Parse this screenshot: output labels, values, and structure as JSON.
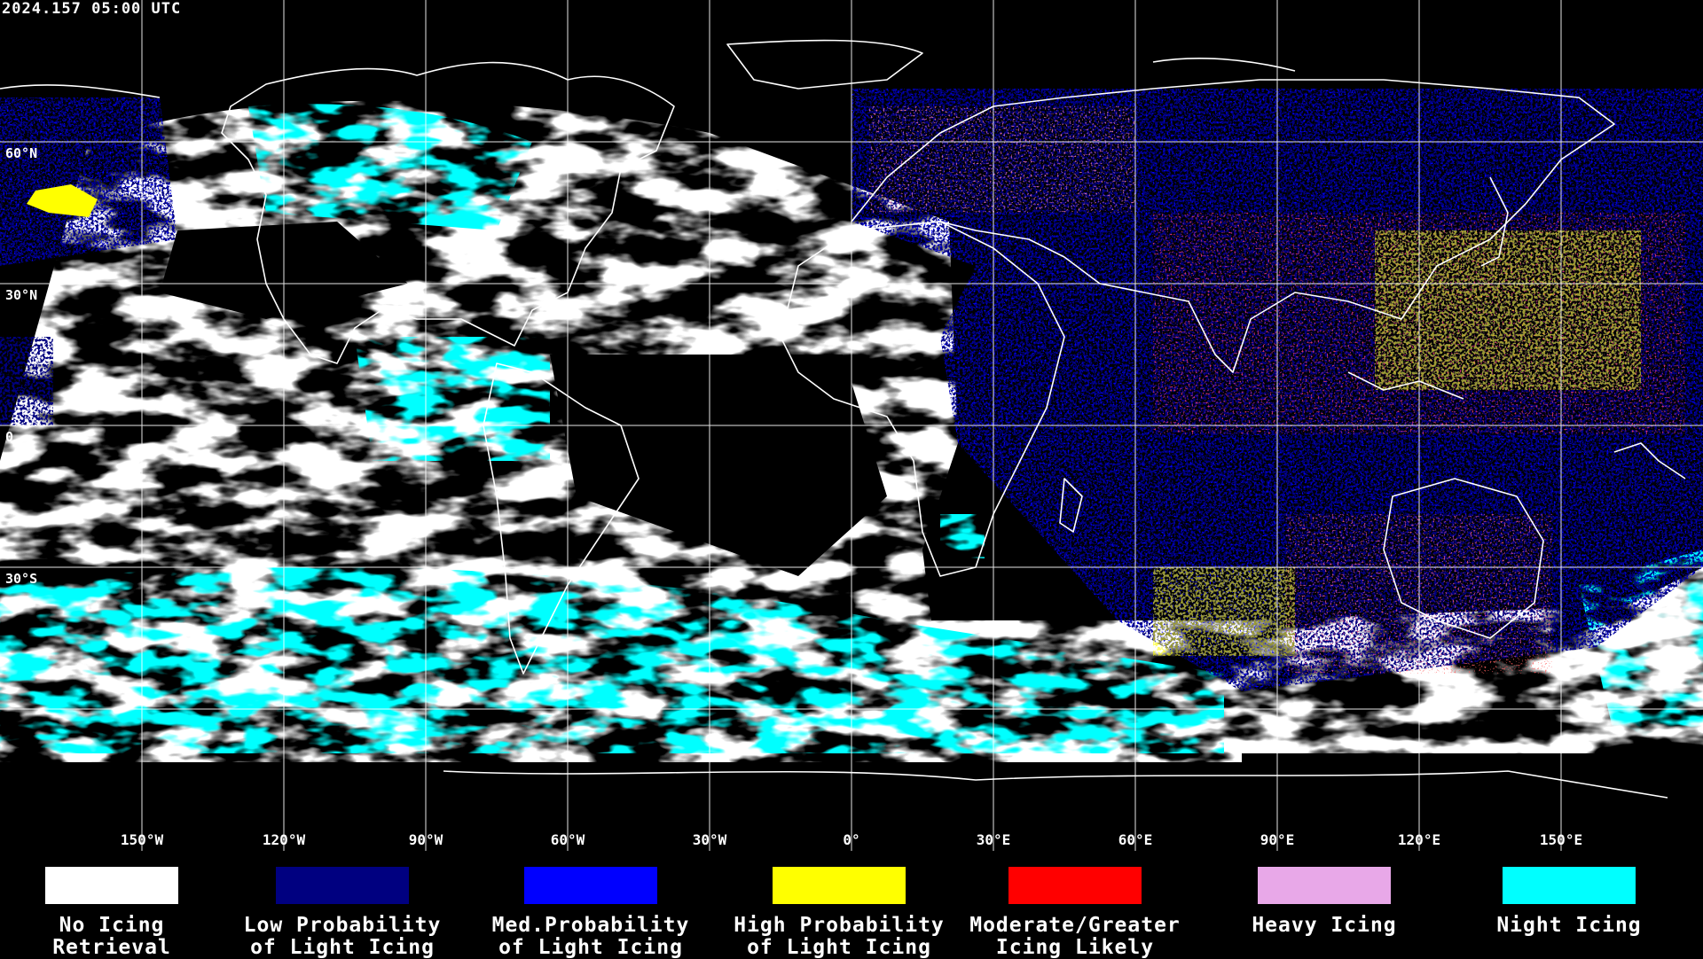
{
  "timestamp": "2024.157 05:00 UTC",
  "lat_labels": [
    "60°N",
    "30°N",
    "0",
    "30°S"
  ],
  "lon_labels": [
    "150°W",
    "120°W",
    "90°W",
    "60°W",
    "30°W",
    "0°",
    "30°E",
    "60°E",
    "90°E",
    "120°E",
    "150°E"
  ],
  "legend": [
    {
      "label": "No Icing\nRetrieval",
      "color": "#ffffff"
    },
    {
      "label": "Low Probability\nof Light Icing",
      "color": "#000080"
    },
    {
      "label": "Med.Probability\nof Light Icing",
      "color": "#0000ff"
    },
    {
      "label": "High Probability\nof Light Icing",
      "color": "#ffff00"
    },
    {
      "label": "Moderate/Greater\nIcing Likely",
      "color": "#ff0000"
    },
    {
      "label": "Heavy Icing",
      "color": "#e8a8e8"
    },
    {
      "label": "Night Icing",
      "color": "#00ffff"
    }
  ]
}
